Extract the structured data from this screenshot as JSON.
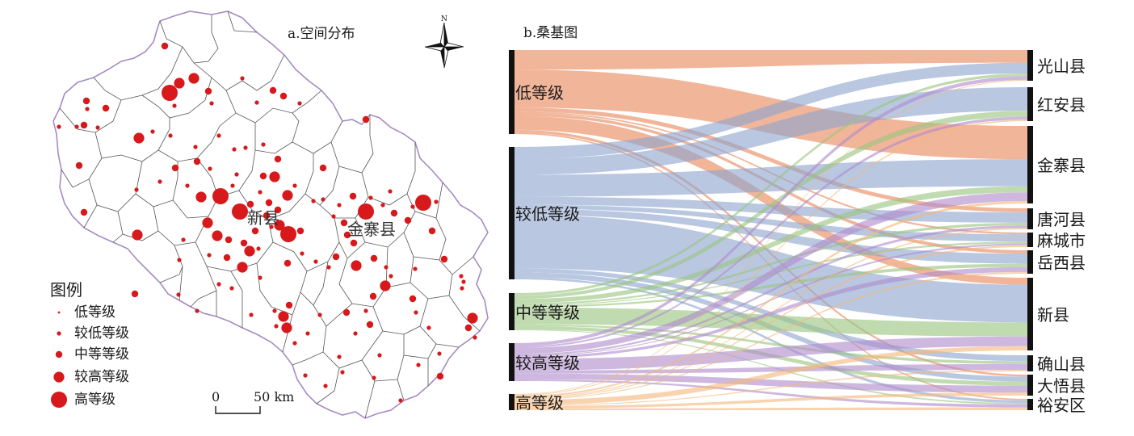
{
  "map": {
    "title": "a.空间分布",
    "north_label": "N",
    "legend_title": "图例",
    "legend_items": [
      "低等级",
      "较低等级",
      "中等等级",
      "较高等级",
      "高等级"
    ],
    "scale_start": "0",
    "scale_end": "50 km",
    "county_labels": [
      "新县",
      "金寨县"
    ],
    "point_color": "#d7191c",
    "boundary_color": "#a48cc2"
  },
  "sankey": {
    "title": "b.桑基图",
    "levels": [
      "低等级",
      "较低等级",
      "中等等级",
      "较高等级",
      "高等级"
    ],
    "level_colors": [
      "#e8885c",
      "#8ea5cf",
      "#9bc57f",
      "#b08ccb",
      "#f4b87a"
    ],
    "counties": [
      "光山县",
      "红安县",
      "金寨县",
      "唐河县",
      "麻城市",
      "岳西县",
      "新县",
      "确山县",
      "大悟县",
      "裕安区"
    ]
  }
}
